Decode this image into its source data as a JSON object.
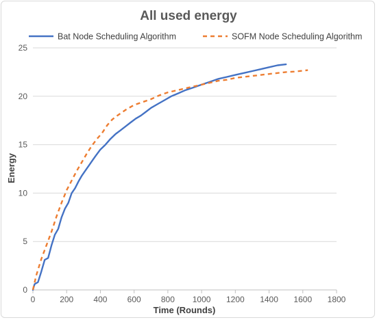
{
  "chart_data": {
    "type": "line",
    "title": "All used energy",
    "xlabel": "Time (Rounds)",
    "ylabel": "Energy",
    "xlim": [
      0,
      1800
    ],
    "ylim": [
      0,
      25
    ],
    "x_ticks": [
      0,
      200,
      400,
      600,
      800,
      1000,
      1200,
      1400,
      1600,
      1800
    ],
    "y_ticks": [
      0,
      5,
      10,
      15,
      20,
      25
    ],
    "grid": "horizontal",
    "legend_position": "top",
    "series": [
      {
        "name": "Bat Node Scheduling Algorithm",
        "color": "#4472C4",
        "style": "solid",
        "points": [
          [
            0,
            0
          ],
          [
            10,
            0.6
          ],
          [
            30,
            0.8
          ],
          [
            50,
            1.9
          ],
          [
            70,
            3.1
          ],
          [
            90,
            3.3
          ],
          [
            110,
            4.6
          ],
          [
            130,
            5.7
          ],
          [
            150,
            6.3
          ],
          [
            170,
            7.5
          ],
          [
            190,
            8.4
          ],
          [
            210,
            9.0
          ],
          [
            230,
            10.0
          ],
          [
            250,
            10.5
          ],
          [
            270,
            11.2
          ],
          [
            290,
            11.8
          ],
          [
            310,
            12.3
          ],
          [
            330,
            12.8
          ],
          [
            350,
            13.3
          ],
          [
            370,
            13.8
          ],
          [
            400,
            14.5
          ],
          [
            430,
            15.0
          ],
          [
            460,
            15.6
          ],
          [
            490,
            16.1
          ],
          [
            520,
            16.5
          ],
          [
            550,
            16.9
          ],
          [
            580,
            17.3
          ],
          [
            610,
            17.7
          ],
          [
            640,
            18.0
          ],
          [
            670,
            18.4
          ],
          [
            700,
            18.8
          ],
          [
            740,
            19.2
          ],
          [
            780,
            19.6
          ],
          [
            820,
            20.0
          ],
          [
            860,
            20.3
          ],
          [
            900,
            20.6
          ],
          [
            950,
            20.9
          ],
          [
            1000,
            21.2
          ],
          [
            1050,
            21.5
          ],
          [
            1100,
            21.8
          ],
          [
            1150,
            22.0
          ],
          [
            1200,
            22.2
          ],
          [
            1250,
            22.4
          ],
          [
            1300,
            22.6
          ],
          [
            1350,
            22.8
          ],
          [
            1400,
            23.0
          ],
          [
            1450,
            23.2
          ],
          [
            1500,
            23.3
          ]
        ]
      },
      {
        "name": "SOFM Node Scheduling Algorithm",
        "color": "#ED7D31",
        "style": "dashed",
        "points": [
          [
            0,
            0
          ],
          [
            20,
            1.5
          ],
          [
            50,
            3.2
          ],
          [
            80,
            4.6
          ],
          [
            110,
            6.0
          ],
          [
            140,
            7.6
          ],
          [
            170,
            9.0
          ],
          [
            200,
            10.3
          ],
          [
            230,
            11.3
          ],
          [
            260,
            12.3
          ],
          [
            290,
            13.2
          ],
          [
            320,
            14.1
          ],
          [
            350,
            14.9
          ],
          [
            380,
            15.6
          ],
          [
            410,
            16.2
          ],
          [
            440,
            17.0
          ],
          [
            470,
            17.6
          ],
          [
            500,
            18.0
          ],
          [
            550,
            18.6
          ],
          [
            600,
            19.1
          ],
          [
            650,
            19.4
          ],
          [
            700,
            19.7
          ],
          [
            750,
            20.1
          ],
          [
            800,
            20.4
          ],
          [
            850,
            20.6
          ],
          [
            900,
            20.8
          ],
          [
            950,
            21.0
          ],
          [
            1000,
            21.2
          ],
          [
            1050,
            21.4
          ],
          [
            1100,
            21.6
          ],
          [
            1150,
            21.7
          ],
          [
            1200,
            21.9
          ],
          [
            1250,
            22.0
          ],
          [
            1300,
            22.1
          ],
          [
            1350,
            22.2
          ],
          [
            1400,
            22.3
          ],
          [
            1450,
            22.4
          ],
          [
            1500,
            22.5
          ],
          [
            1550,
            22.55
          ],
          [
            1630,
            22.7
          ]
        ]
      }
    ]
  }
}
